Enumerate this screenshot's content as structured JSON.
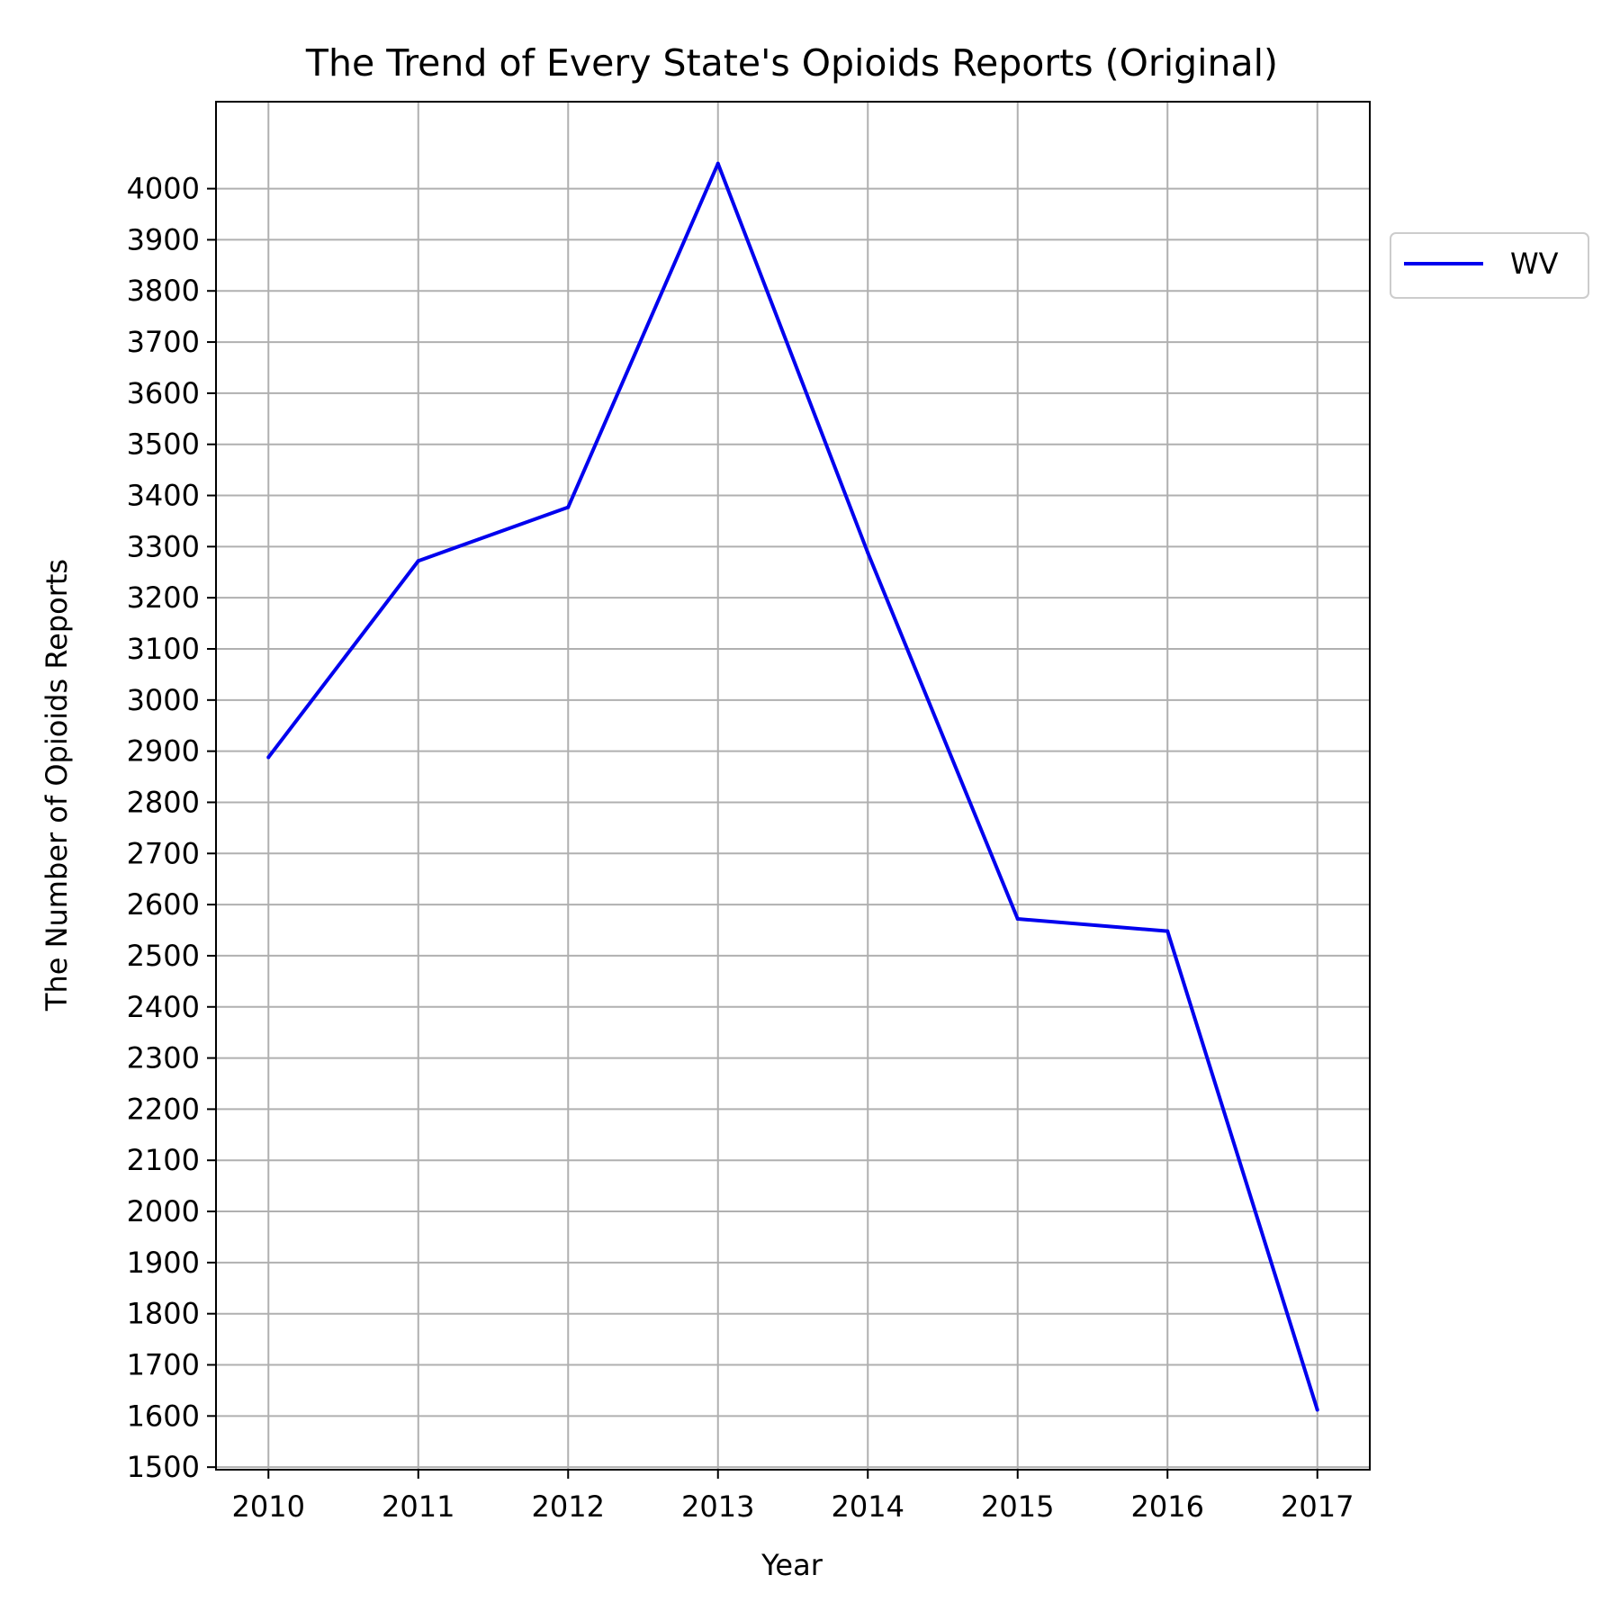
{
  "chart_data": {
    "type": "line",
    "title": "The Trend of Every State's Opioids Reports (Original)",
    "xlabel": "Year",
    "ylabel": "The Number of Opioids Reports",
    "categories": [
      2010,
      2011,
      2012,
      2013,
      2014,
      2015,
      2016,
      2017
    ],
    "xlim": [
      2009.65,
      2017.35
    ],
    "ylim": [
      1495,
      4170
    ],
    "yticks": [
      1500,
      1600,
      1700,
      1800,
      1900,
      2000,
      2100,
      2200,
      2300,
      2400,
      2500,
      2600,
      2700,
      2800,
      2900,
      3000,
      3100,
      3200,
      3300,
      3400,
      3500,
      3600,
      3700,
      3800,
      3900,
      4000
    ],
    "grid": true,
    "legend_position": "outside-right-top",
    "series": [
      {
        "name": "WV",
        "color": "#0000ee",
        "values": [
          2888,
          3272,
          3377,
          4049,
          3288,
          2572,
          2548,
          1612
        ]
      }
    ]
  }
}
